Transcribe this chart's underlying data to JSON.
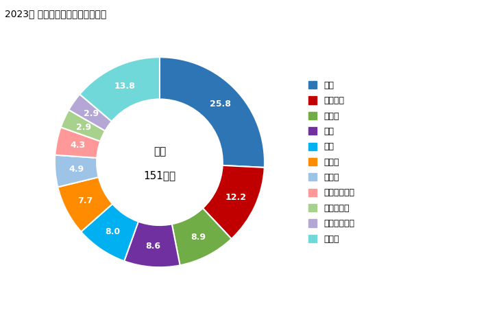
{
  "title": "2023年 輸入相手国のシェア（％）",
  "center_text_line1": "総額",
  "center_text_line2": "151億円",
  "labels": [
    "米国",
    "フランス",
    "カナダ",
    "英国",
    "中国",
    "ドイツ",
    "スイス",
    "オーストリア",
    "ノルウェー",
    "スウェーデン",
    "その他"
  ],
  "values": [
    25.8,
    12.2,
    8.9,
    8.6,
    8.0,
    7.7,
    4.9,
    4.3,
    2.9,
    2.9,
    13.8
  ],
  "colors": [
    "#2E75B6",
    "#C00000",
    "#70AD47",
    "#7030A0",
    "#00B0F0",
    "#FF8C00",
    "#9DC3E6",
    "#FF9999",
    "#A9D18E",
    "#B4A7D6",
    "#70D8D8"
  ],
  "label_fontsize": 9,
  "title_fontsize": 10,
  "legend_fontsize": 9,
  "donut_width": 0.4,
  "figure_width": 7.28,
  "figure_height": 4.5,
  "dpi": 100
}
